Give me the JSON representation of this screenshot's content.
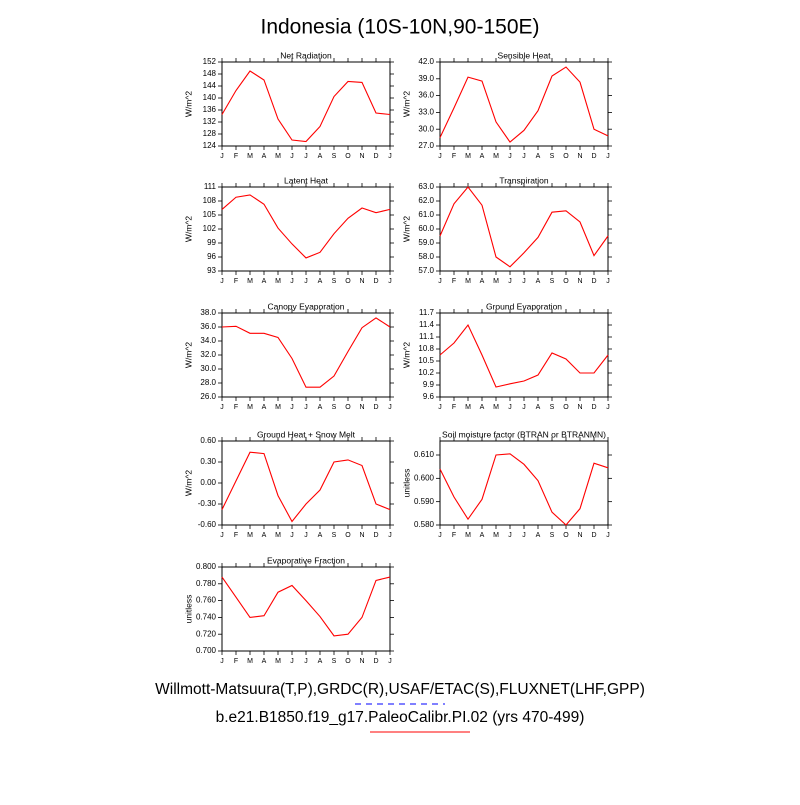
{
  "title": "Indonesia (10S-10N,90-150E)",
  "legend": [
    {
      "name": "Willmott-Matsuura(T,P),GRDC(R),USAF/ETAC(S),FLUXNET(LHF,GPP)",
      "color": "#0000ff",
      "dashed": true
    },
    {
      "name": "b.e21.B1850.f19_g17.PaleoCalibr.PI.02 (yrs 470-499)",
      "color": "#ff0000",
      "dashed": false
    }
  ],
  "chart_data": [
    {
      "type": "line",
      "title": "Net Radiation",
      "ylabel": "W/m^2",
      "categories": [
        "J",
        "F",
        "M",
        "A",
        "M",
        "J",
        "J",
        "A",
        "S",
        "O",
        "N",
        "D",
        "J"
      ],
      "values": [
        134.5,
        142.5,
        149,
        146,
        133,
        126,
        125.5,
        130.5,
        140.5,
        145.5,
        145.2,
        135,
        134.5
      ],
      "color": "#ff0000",
      "ylim": [
        124,
        152
      ],
      "yticks": [
        124,
        128,
        132,
        136,
        140,
        144,
        148,
        152
      ]
    },
    {
      "type": "line",
      "title": "Sensible Heat",
      "ylabel": "W/m^2",
      "categories": [
        "J",
        "F",
        "M",
        "A",
        "M",
        "J",
        "J",
        "A",
        "S",
        "O",
        "N",
        "D",
        "J"
      ],
      "values": [
        28.5,
        33.8,
        39.3,
        38.6,
        31.3,
        27.7,
        29.8,
        33.3,
        39.5,
        41.1,
        38.4,
        30.0,
        28.8
      ],
      "color": "#ff0000",
      "ylim": [
        27,
        42
      ],
      "yticks": [
        {
          "value": 27,
          "label": "27.0"
        },
        {
          "value": 30,
          "label": "30.0"
        },
        {
          "value": 33,
          "label": "33.0"
        },
        {
          "value": 36,
          "label": "36.0"
        },
        {
          "value": 39,
          "label": "39.0"
        },
        {
          "value": 42,
          "label": "42.0"
        }
      ]
    },
    {
      "type": "line",
      "title": "Latent Heat",
      "ylabel": "W/m^2",
      "categories": [
        "J",
        "F",
        "M",
        "A",
        "M",
        "J",
        "J",
        "A",
        "S",
        "O",
        "N",
        "D",
        "J"
      ],
      "values": [
        106.2,
        108.8,
        109.3,
        107.3,
        102.2,
        98.8,
        95.8,
        97,
        101,
        104.3,
        106.5,
        105.5,
        106.2
      ],
      "color": "#ff0000",
      "ylim": [
        93,
        111
      ],
      "yticks": [
        93,
        96,
        99,
        102,
        105,
        108,
        111
      ]
    },
    {
      "type": "line",
      "title": "Transpiration",
      "ylabel": "W/m^2",
      "categories": [
        "J",
        "F",
        "M",
        "A",
        "M",
        "J",
        "J",
        "A",
        "S",
        "O",
        "N",
        "D",
        "J"
      ],
      "values": [
        59.5,
        61.8,
        63.0,
        61.7,
        58.0,
        57.3,
        58.3,
        59.4,
        61.2,
        61.3,
        60.5,
        58.1,
        59.5
      ],
      "color": "#ff0000",
      "ylim": [
        57,
        63
      ],
      "yticks": [
        {
          "value": 57,
          "label": "57.0"
        },
        {
          "value": 58,
          "label": "58.0"
        },
        {
          "value": 59,
          "label": "59.0"
        },
        {
          "value": 60,
          "label": "60.0"
        },
        {
          "value": 61,
          "label": "61.0"
        },
        {
          "value": 62,
          "label": "62.0"
        },
        {
          "value": 63,
          "label": "63.0"
        }
      ]
    },
    {
      "type": "line",
      "title": "Canopy Evaporation",
      "ylabel": "W/m^2",
      "categories": [
        "J",
        "F",
        "M",
        "A",
        "M",
        "J",
        "J",
        "A",
        "S",
        "O",
        "N",
        "D",
        "J"
      ],
      "values": [
        36.0,
        36.1,
        35.1,
        35.1,
        34.5,
        31.5,
        27.4,
        27.4,
        29,
        32.5,
        35.9,
        37.3,
        36.0
      ],
      "color": "#ff0000",
      "ylim": [
        26,
        38
      ],
      "yticks": [
        {
          "value": 26,
          "label": "26.0"
        },
        {
          "value": 28,
          "label": "28.0"
        },
        {
          "value": 30,
          "label": "30.0"
        },
        {
          "value": 32,
          "label": "32.0"
        },
        {
          "value": 34,
          "label": "34.0"
        },
        {
          "value": 36,
          "label": "36.0"
        },
        {
          "value": 38,
          "label": "38.0"
        }
      ]
    },
    {
      "type": "line",
      "title": "Ground Evaporation",
      "ylabel": "W/m^2",
      "categories": [
        "J",
        "F",
        "M",
        "A",
        "M",
        "J",
        "J",
        "A",
        "S",
        "O",
        "N",
        "D",
        "J"
      ],
      "values": [
        10.65,
        10.95,
        11.4,
        10.65,
        9.85,
        9.93,
        10.0,
        10.15,
        10.7,
        10.55,
        10.2,
        10.2,
        10.65
      ],
      "color": "#ff0000",
      "ylim": [
        9.6,
        11.7
      ],
      "yticks": [
        9.6,
        9.9,
        10.2,
        10.5,
        10.8,
        11.1,
        11.4,
        11.7
      ]
    },
    {
      "type": "line",
      "title": "Ground Heat + Snow Melt",
      "ylabel": "W/m^2",
      "categories": [
        "J",
        "F",
        "M",
        "A",
        "M",
        "J",
        "J",
        "A",
        "S",
        "O",
        "N",
        "D",
        "J"
      ],
      "values": [
        -0.38,
        0.03,
        0.44,
        0.42,
        -0.18,
        -0.55,
        -0.3,
        -0.1,
        0.3,
        0.33,
        0.25,
        -0.3,
        -0.38
      ],
      "color": "#ff0000",
      "ylim": [
        -0.6,
        0.6
      ],
      "yticks": [
        {
          "value": -0.6,
          "label": "-0.60"
        },
        {
          "value": -0.3,
          "label": "-0.30"
        },
        {
          "value": 0,
          "label": "0.00"
        },
        {
          "value": 0.3,
          "label": "0.30"
        },
        {
          "value": 0.6,
          "label": "0.60"
        }
      ]
    },
    {
      "type": "line",
      "title": "Soil moisture factor (BTRAN or BTRANMN)",
      "ylabel": "unitless",
      "categories": [
        "J",
        "F",
        "M",
        "A",
        "M",
        "J",
        "J",
        "A",
        "S",
        "O",
        "N",
        "D",
        "J"
      ],
      "values": [
        0.604,
        0.592,
        0.5825,
        0.591,
        0.61,
        0.6105,
        0.606,
        0.599,
        0.5855,
        0.58,
        0.587,
        0.6065,
        0.6045
      ],
      "color": "#ff0000",
      "ylim": [
        0.58,
        0.616
      ],
      "yticks": [
        {
          "value": 0.58,
          "label": "0.580"
        },
        {
          "value": 0.59,
          "label": "0.590"
        },
        {
          "value": 0.6,
          "label": "0.600"
        },
        {
          "value": 0.61,
          "label": "0.610"
        }
      ]
    },
    {
      "type": "line",
      "title": "Evaporative Fraction",
      "ylabel": "unitless",
      "categories": [
        "J",
        "F",
        "M",
        "A",
        "M",
        "J",
        "J",
        "A",
        "S",
        "O",
        "N",
        "D",
        "J"
      ],
      "values": [
        0.788,
        0.764,
        0.74,
        0.742,
        0.77,
        0.778,
        0.76,
        0.741,
        0.718,
        0.72,
        0.74,
        0.784,
        0.788
      ],
      "color": "#ff0000",
      "ylim": [
        0.7,
        0.8
      ],
      "yticks": [
        {
          "value": 0.7,
          "label": "0.700"
        },
        {
          "value": 0.72,
          "label": "0.720"
        },
        {
          "value": 0.74,
          "label": "0.740"
        },
        {
          "value": 0.76,
          "label": "0.760"
        },
        {
          "value": 0.78,
          "label": "0.780"
        },
        {
          "value": 0.8,
          "label": "0.800"
        }
      ]
    }
  ]
}
